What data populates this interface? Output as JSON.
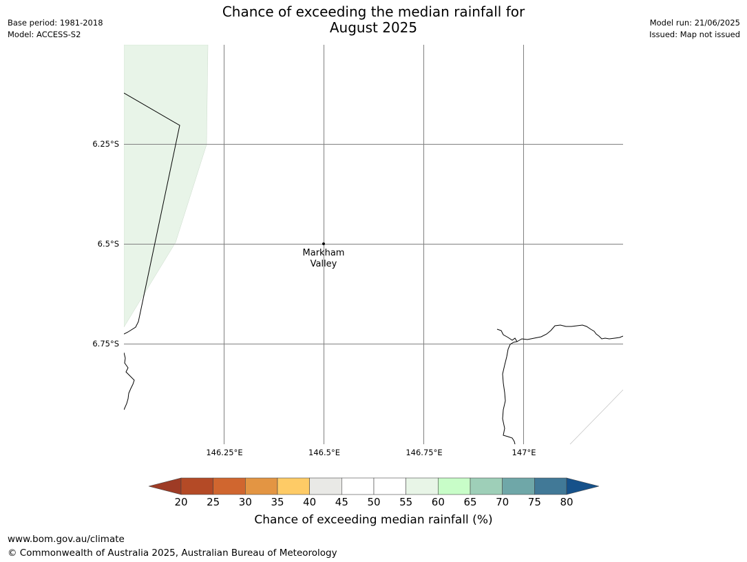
{
  "title_line1": "Chance of exceeding the median rainfall for",
  "title_line2": "August 2025",
  "meta_left": {
    "base_period": "Base period: 1981-2018",
    "model": "Model: ACCESS-S2"
  },
  "meta_right": {
    "model_run": "Model run: 21/06/2025",
    "issued": "Issued: Map not issued"
  },
  "map": {
    "lat_labels": [
      "6.25°S",
      "6.5°S",
      "6.75°S"
    ],
    "lon_labels": [
      "146.25°E",
      "146.5°E",
      "146.75°E",
      "147°E"
    ],
    "place": {
      "name_line1": "Markham",
      "name_line2": "Valley",
      "lat": -6.5,
      "lon": 146.5
    },
    "shaded_region_category": "55-60",
    "colors": {
      "gridline": "#7f7f7f",
      "coastline": "#000000",
      "shaded_region": "#e8f4e8"
    }
  },
  "colorbar": {
    "ticks": [
      "20",
      "25",
      "30",
      "35",
      "40",
      "45",
      "50",
      "55",
      "60",
      "65",
      "70",
      "75",
      "80"
    ],
    "under_color": "#9e3b25",
    "over_color": "#16518a",
    "segment_colors": [
      "#b44a26",
      "#d0662f",
      "#e39543",
      "#fecb66",
      "#e9e9e6",
      "#ffffff",
      "#ffffff",
      "#e8f5e7",
      "#c8fdc8",
      "#9ecfb8",
      "#6fa7a8",
      "#417997"
    ],
    "label": "Chance of exceeding median rainfall (%)"
  },
  "footer": {
    "url": "www.bom.gov.au/climate",
    "copyright": "© Commonwealth of Australia 2025, Australian Bureau of Meteorology"
  }
}
